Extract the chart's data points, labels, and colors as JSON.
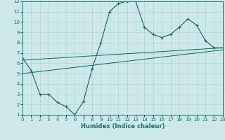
{
  "xlabel": "Humidex (Indice chaleur)",
  "bg_color": "#cce8e8",
  "line_color": "#1a6b6b",
  "grid_color": "#b0d4d4",
  "xlim": [
    0,
    23
  ],
  "ylim": [
    1,
    12
  ],
  "xticks": [
    0,
    1,
    2,
    3,
    4,
    5,
    6,
    7,
    8,
    9,
    10,
    11,
    12,
    13,
    14,
    15,
    16,
    17,
    18,
    19,
    20,
    21,
    22,
    23
  ],
  "yticks": [
    1,
    2,
    3,
    4,
    5,
    6,
    7,
    8,
    9,
    10,
    11,
    12
  ],
  "curve_x": [
    0,
    1,
    2,
    3,
    4,
    5,
    6,
    7,
    8,
    9,
    10,
    11,
    12,
    13,
    14,
    15,
    16,
    17,
    18,
    19,
    20,
    21,
    22,
    23
  ],
  "curve_y": [
    6.5,
    5.3,
    3.0,
    3.0,
    2.2,
    1.8,
    1.0,
    2.3,
    5.5,
    8.0,
    11.0,
    11.8,
    12.0,
    12.0,
    9.5,
    8.8,
    8.5,
    8.8,
    9.5,
    10.3,
    9.7,
    8.2,
    7.5,
    7.5
  ],
  "trend1_x": [
    0,
    23
  ],
  "trend1_y": [
    6.3,
    7.5
  ],
  "trend2_x": [
    0,
    23
  ],
  "trend2_y": [
    5.0,
    7.3
  ]
}
